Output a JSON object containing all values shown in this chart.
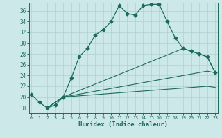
{
  "xlabel": "Humidex (Indice chaleur)",
  "bg_color": "#cce8e8",
  "grid_color": "#b0d0d0",
  "line_color": "#1a6b5a",
  "xlim": [
    -0.3,
    23.3
  ],
  "ylim": [
    17.0,
    37.5
  ],
  "xticks": [
    0,
    1,
    2,
    3,
    4,
    5,
    6,
    7,
    8,
    9,
    10,
    11,
    12,
    13,
    14,
    15,
    16,
    17,
    18,
    19,
    20,
    21,
    22,
    23
  ],
  "yticks": [
    18,
    20,
    22,
    24,
    26,
    28,
    30,
    32,
    34,
    36
  ],
  "line1_x": [
    0,
    1,
    2,
    3,
    4,
    5,
    6,
    7,
    8,
    9,
    10,
    11,
    12,
    13,
    14,
    15,
    16,
    17,
    18,
    19,
    20,
    21,
    22,
    23
  ],
  "line1_y": [
    20.5,
    19.0,
    18.0,
    18.5,
    20.0,
    23.5,
    27.5,
    29.0,
    31.5,
    32.5,
    34.0,
    37.0,
    35.5,
    35.2,
    37.0,
    37.2,
    37.2,
    34.0,
    31.0,
    29.0,
    28.5,
    28.0,
    27.5,
    24.5
  ],
  "line2_x": [
    2,
    4,
    19,
    20,
    21,
    22,
    23
  ],
  "line2_y": [
    18.0,
    20.0,
    29.0,
    28.5,
    28.0,
    27.5,
    24.5
  ],
  "line3_x": [
    2,
    4,
    22,
    23
  ],
  "line3_y": [
    18.0,
    20.0,
    24.8,
    24.5
  ],
  "line4_x": [
    2,
    4,
    22,
    23
  ],
  "line4_y": [
    18.0,
    20.0,
    22.0,
    21.8
  ]
}
